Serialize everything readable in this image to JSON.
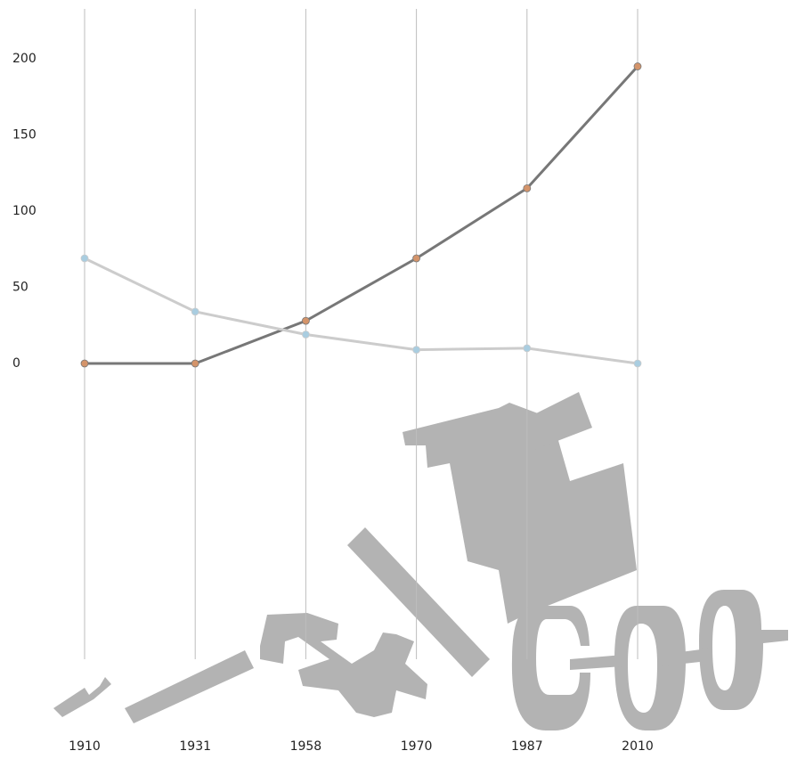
{
  "chart_data": {
    "type": "line",
    "categories": [
      "1910",
      "1931",
      "1958",
      "1970",
      "1987",
      "2010"
    ],
    "series": [
      {
        "color": "#777777",
        "marker_color": "#d4946a",
        "values": [
          0,
          0,
          28,
          69,
          115,
          195
        ]
      },
      {
        "color": "#cccccc",
        "marker_color": "#a9cde0",
        "values": [
          69,
          34,
          19,
          9,
          10,
          0
        ]
      }
    ],
    "ylim": [
      0,
      200
    ],
    "yticks": [
      0,
      50,
      100,
      150,
      200
    ],
    "grid": false
  }
}
